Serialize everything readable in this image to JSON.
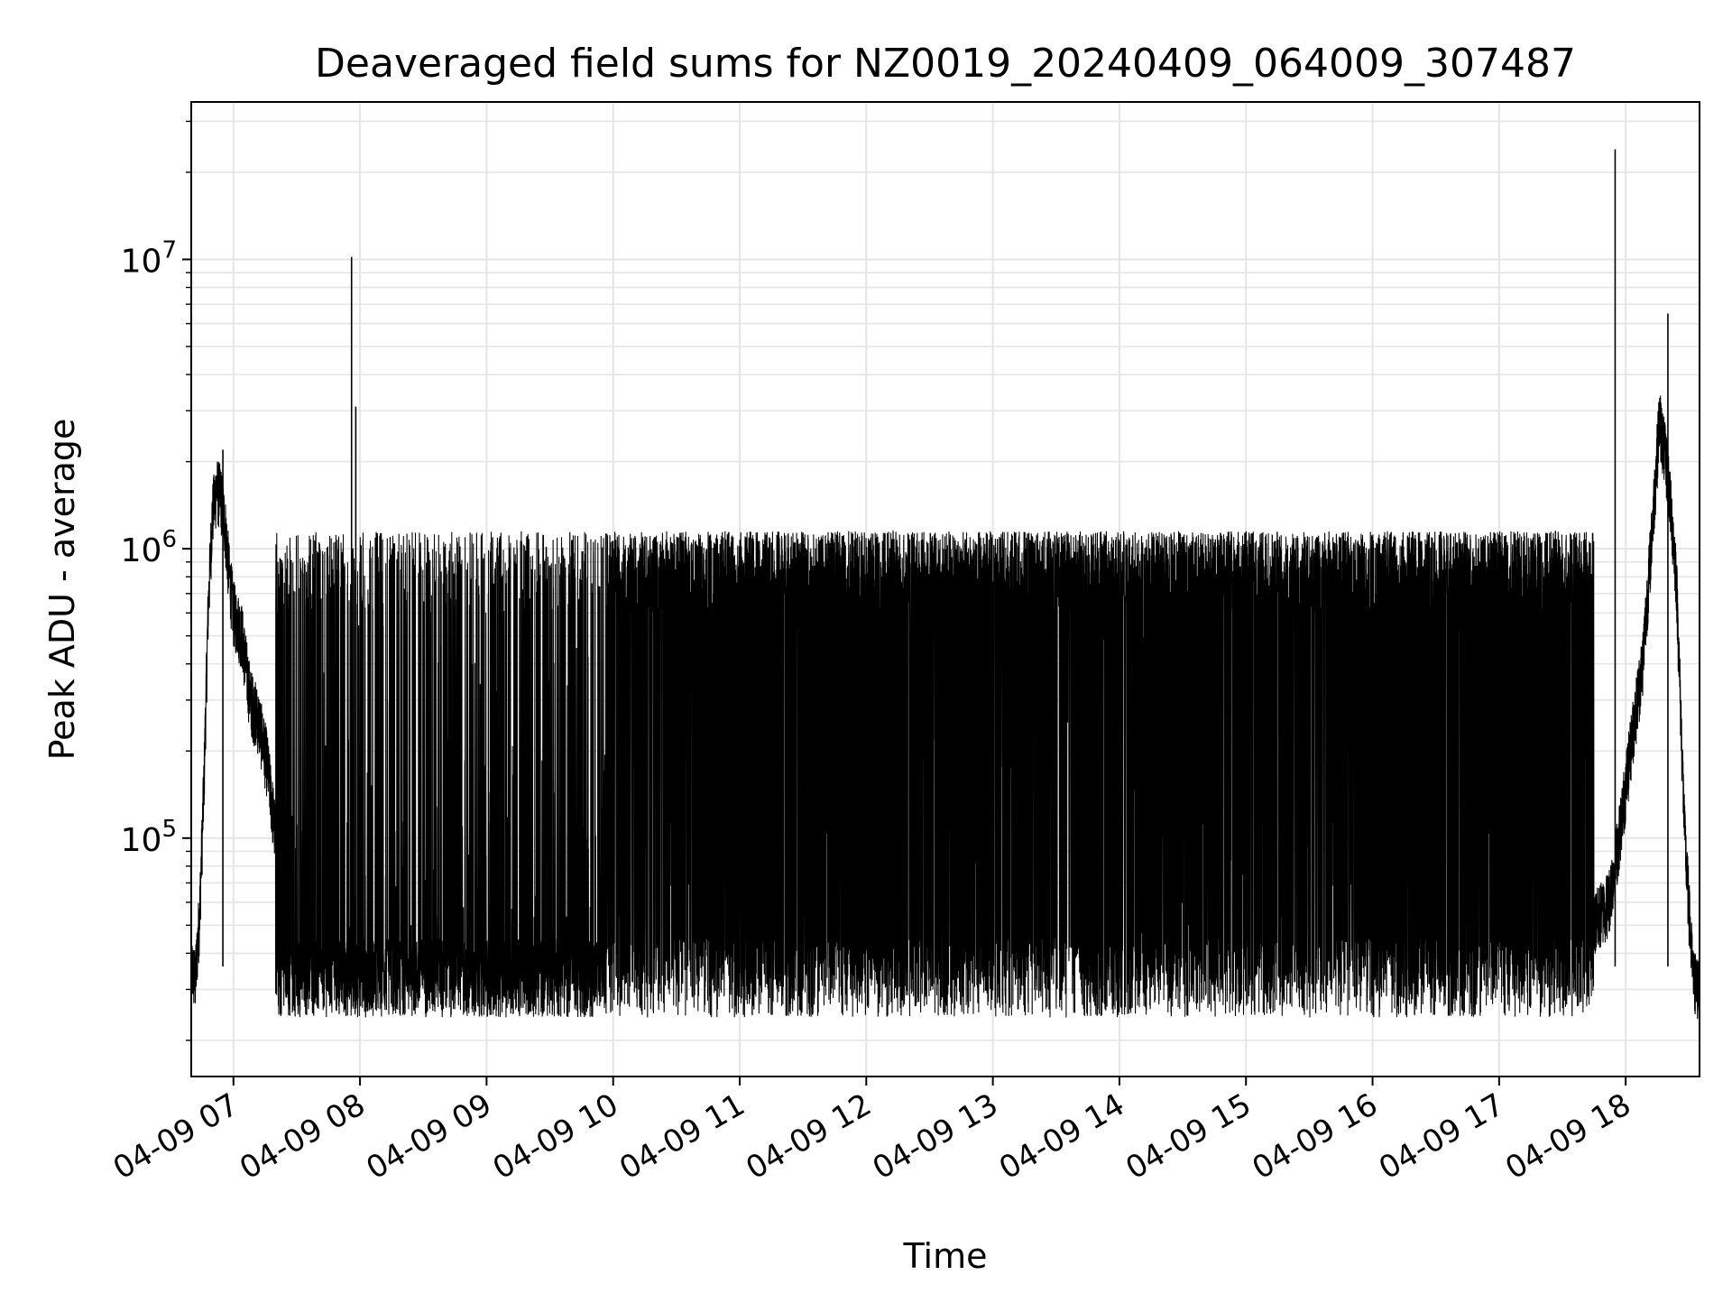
{
  "chart_data": {
    "type": "line",
    "title": "Deaveraged field sums for NZ0019_20240409_064009_307487",
    "xlabel": "Time",
    "ylabel": "Peak ADU - average",
    "yscale": "log",
    "ylim": [
      15000,
      35000000
    ],
    "xlim": [
      "2024-04-09 06:40",
      "2024-04-09 18:35"
    ],
    "x_ticks": [
      {
        "value": "2024-04-09 07:00",
        "label": "04-09 07"
      },
      {
        "value": "2024-04-09 08:00",
        "label": "04-09 08"
      },
      {
        "value": "2024-04-09 09:00",
        "label": "04-09 09"
      },
      {
        "value": "2024-04-09 10:00",
        "label": "04-09 10"
      },
      {
        "value": "2024-04-09 11:00",
        "label": "04-09 11"
      },
      {
        "value": "2024-04-09 12:00",
        "label": "04-09 12"
      },
      {
        "value": "2024-04-09 13:00",
        "label": "04-09 13"
      },
      {
        "value": "2024-04-09 14:00",
        "label": "04-09 14"
      },
      {
        "value": "2024-04-09 15:00",
        "label": "04-09 15"
      },
      {
        "value": "2024-04-09 16:00",
        "label": "04-09 16"
      },
      {
        "value": "2024-04-09 17:00",
        "label": "04-09 17"
      },
      {
        "value": "2024-04-09 18:00",
        "label": "04-09 18"
      }
    ],
    "y_ticks": [
      {
        "value": 100000,
        "base": "10",
        "exp": "5"
      },
      {
        "value": 1000000,
        "base": "10",
        "exp": "6"
      },
      {
        "value": 10000000,
        "base": "10",
        "exp": "7"
      }
    ],
    "grid": true,
    "line_color": "#000000",
    "grid_color": "#e5e5e5",
    "series": [
      {
        "x": [
          "2024-04-09 06:40",
          "2024-04-09 06:42",
          "2024-04-09 06:44",
          "2024-04-09 06:46",
          "2024-04-09 06:48",
          "2024-04-09 06:50",
          "2024-04-09 06:52",
          "2024-04-09 06:54",
          "2024-04-09 06:56",
          "2024-04-09 06:58",
          "2024-04-09 07:00",
          "2024-04-09 07:04",
          "2024-04-09 07:08",
          "2024-04-09 07:12",
          "2024-04-09 07:16",
          "2024-04-09 07:20",
          "2024-04-09 07:24",
          "2024-04-09 07:28",
          "2024-04-09 07:32",
          "2024-04-09 07:36",
          "2024-04-09 07:40",
          "2024-04-09 07:44",
          "2024-04-09 07:48",
          "2024-04-09 07:52",
          "2024-04-09 07:56",
          "2024-04-09 08:00",
          "2024-04-09 08:10",
          "2024-04-09 08:20",
          "2024-04-09 08:30",
          "2024-04-09 08:40",
          "2024-04-09 08:50",
          "2024-04-09 09:00",
          "2024-04-09 09:10",
          "2024-04-09 09:20",
          "2024-04-09 09:30",
          "2024-04-09 09:40",
          "2024-04-09 09:50",
          "2024-04-09 10:00",
          "2024-04-09 10:15",
          "2024-04-09 10:30",
          "2024-04-09 10:45",
          "2024-04-09 11:00",
          "2024-04-09 11:15",
          "2024-04-09 11:30",
          "2024-04-09 11:45",
          "2024-04-09 12:00",
          "2024-04-09 12:15",
          "2024-04-09 12:30",
          "2024-04-09 12:45",
          "2024-04-09 13:00",
          "2024-04-09 13:15",
          "2024-04-09 13:30",
          "2024-04-09 13:45",
          "2024-04-09 14:00",
          "2024-04-09 14:15",
          "2024-04-09 14:30",
          "2024-04-09 14:45",
          "2024-04-09 15:00",
          "2024-04-09 15:15",
          "2024-04-09 15:30",
          "2024-04-09 15:45",
          "2024-04-09 16:00",
          "2024-04-09 16:15",
          "2024-04-09 16:30",
          "2024-04-09 16:45",
          "2024-04-09 17:00",
          "2024-04-09 17:15",
          "2024-04-09 17:30",
          "2024-04-09 17:45",
          "2024-04-09 17:52",
          "2024-04-09 17:56",
          "2024-04-09 18:00",
          "2024-04-09 18:04",
          "2024-04-09 18:08",
          "2024-04-09 18:12",
          "2024-04-09 18:16",
          "2024-04-09 18:20",
          "2024-04-09 18:24",
          "2024-04-09 18:28",
          "2024-04-09 18:32",
          "2024-04-09 18:35"
        ],
        "values": [
          35000,
          32000,
          55000,
          150000,
          600000,
          1300000,
          1600000,
          1500000,
          1200000,
          800000,
          600000,
          500000,
          300000,
          250000,
          180000,
          100000,
          55000,
          42000,
          38000,
          36000,
          37000,
          38000,
          40000,
          42000,
          45000,
          40000,
          38000,
          37000,
          36000,
          38000,
          37000,
          36000,
          35000,
          34000,
          36000,
          36000,
          37000,
          38000,
          120000,
          300000,
          450000,
          400000,
          350000,
          300000,
          250000,
          200000,
          150000,
          120000,
          100000,
          90000,
          120000,
          200000,
          250000,
          300000,
          400000,
          450000,
          500000,
          500000,
          350000,
          200000,
          80000,
          50000,
          45000,
          50000,
          48000,
          50000,
          50000,
          50000,
          50000,
          60000,
          90000,
          150000,
          250000,
          400000,
          1000000,
          2800000,
          1800000,
          800000,
          100000,
          32000,
          30000
        ]
      }
    ],
    "spikes": [
      {
        "x": "2024-04-09 07:56",
        "value": 10200000
      },
      {
        "x": "2024-04-09 07:58",
        "value": 3100000
      },
      {
        "x": "2024-04-09 17:55",
        "value": 24000000
      },
      {
        "x": "2024-04-09 18:20",
        "value": 6500000
      },
      {
        "x": "2024-04-09 06:55",
        "value": 2200000
      }
    ],
    "band_envelope": {
      "upper_typical": 1000000,
      "lower_typical": 30000
    }
  }
}
